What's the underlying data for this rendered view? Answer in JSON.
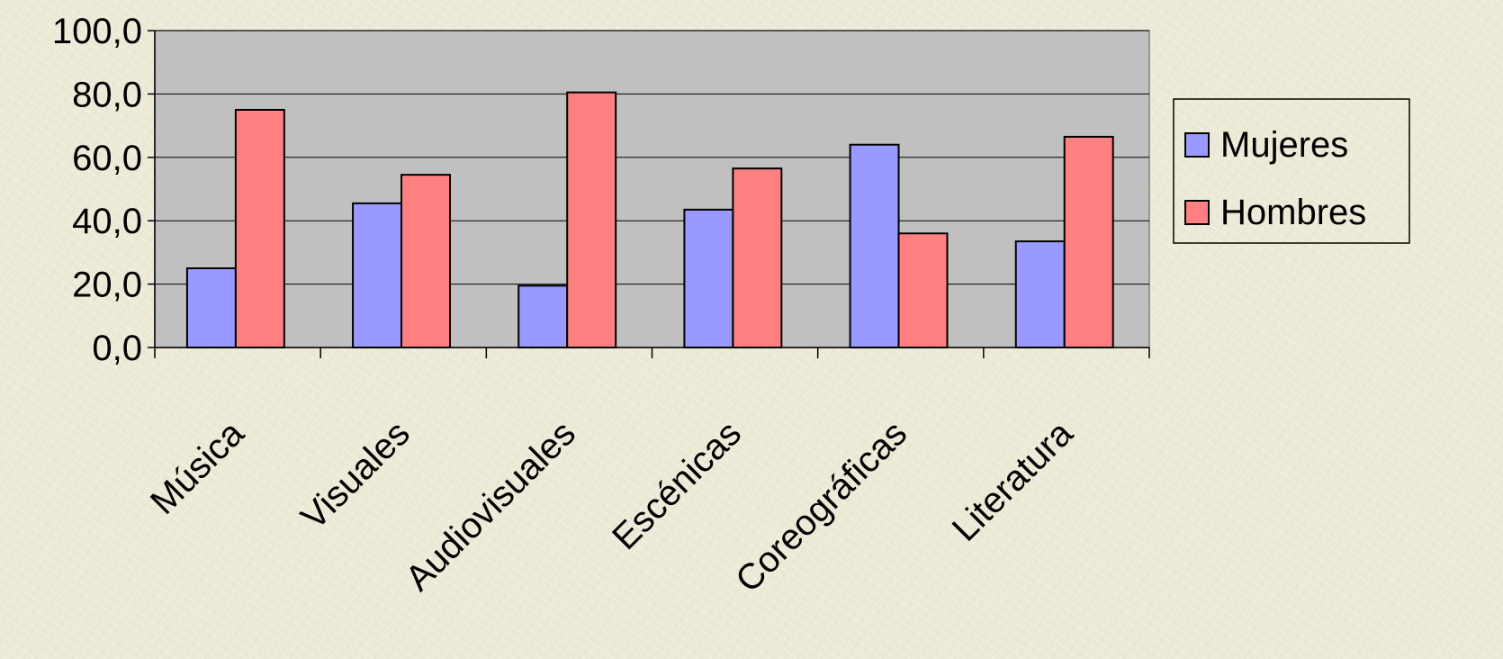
{
  "chart_data": {
    "type": "bar",
    "categories": [
      "Música",
      "Visuales",
      "Audiovisuales",
      "Escénicas",
      "Coreográficas",
      "Literatura"
    ],
    "series": [
      {
        "name": "Mujeres",
        "color": "#9999ff",
        "values": [
          25.0,
          45.5,
          19.5,
          43.5,
          64.0,
          33.5
        ]
      },
      {
        "name": "Hombres",
        "color": "#ff8080",
        "values": [
          75.0,
          54.5,
          80.5,
          56.5,
          36.0,
          66.5
        ]
      }
    ],
    "yticks": [
      "0,0",
      "20,0",
      "40,0",
      "60,0",
      "80,0",
      "100,0"
    ],
    "ylim": [
      0,
      100
    ],
    "grid": true,
    "plot_background": "#c0c0c0",
    "legend_position": "right",
    "title": "",
    "xlabel": "",
    "ylabel": ""
  }
}
